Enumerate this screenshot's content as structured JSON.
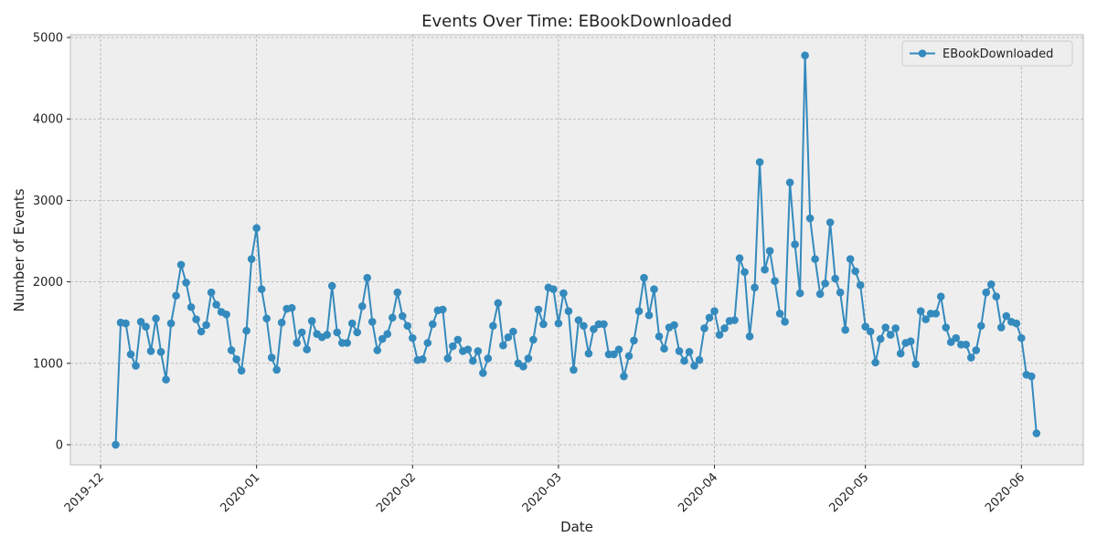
{
  "chart_data": {
    "type": "line",
    "title": "Events Over Time: EBookDownloaded",
    "x_label": "Date",
    "y_label": "Number of Events",
    "series": [
      {
        "name": "EBookDownloaded",
        "color": "#348abd",
        "values": [
          0,
          1500,
          1490,
          1110,
          970,
          1510,
          1450,
          1150,
          1550,
          1140,
          800,
          1490,
          1830,
          2210,
          1990,
          1690,
          1540,
          1390,
          1470,
          1870,
          1720,
          1630,
          1600,
          1160,
          1050,
          910,
          1400,
          2280,
          2660,
          1910,
          1550,
          1070,
          920,
          1500,
          1670,
          1680,
          1250,
          1380,
          1170,
          1520,
          1360,
          1320,
          1350,
          1950,
          1380,
          1250,
          1250,
          1490,
          1380,
          1700,
          2050,
          1510,
          1160,
          1300,
          1360,
          1560,
          1870,
          1580,
          1460,
          1310,
          1040,
          1050,
          1250,
          1480,
          1650,
          1660,
          1060,
          1210,
          1290,
          1150,
          1170,
          1030,
          1150,
          880,
          1060,
          1460,
          1740,
          1220,
          1320,
          1390,
          1000,
          960,
          1060,
          1290,
          1660,
          1480,
          1930,
          1910,
          1490,
          1860,
          1640,
          920,
          1530,
          1460,
          1120,
          1420,
          1480,
          1480,
          1110,
          1110,
          1170,
          840,
          1090,
          1280,
          1640,
          2050,
          1590,
          1910,
          1330,
          1180,
          1440,
          1470,
          1150,
          1030,
          1140,
          970,
          1040,
          1430,
          1560,
          1640,
          1350,
          1430,
          1520,
          1530,
          2290,
          2120,
          1330,
          1930,
          3470,
          2150,
          2380,
          2010,
          1610,
          1510,
          3220,
          2460,
          1860,
          4780,
          2780,
          2280,
          1850,
          1980,
          2730,
          2040,
          1870,
          1410,
          2280,
          2130,
          1960,
          1450,
          1390,
          1010,
          1300,
          1440,
          1350,
          1430,
          1120,
          1250,
          1270,
          990,
          1640,
          1540,
          1610,
          1610,
          1820,
          1440,
          1260,
          1310,
          1230,
          1230,
          1070,
          1160,
          1460,
          1870,
          1970,
          1820,
          1440,
          1580,
          1510,
          1490,
          1310,
          860,
          840,
          140
        ]
      }
    ],
    "xlim": [
      -9,
      192.3
    ],
    "xticks": [
      {
        "value": -3,
        "label": "2019-12"
      },
      {
        "value": 28,
        "label": "2020-01"
      },
      {
        "value": 59,
        "label": "2020-02"
      },
      {
        "value": 88,
        "label": "2020-03"
      },
      {
        "value": 119,
        "label": "2020-04"
      },
      {
        "value": 149,
        "label": "2020-05"
      },
      {
        "value": 180,
        "label": "2020-06"
      }
    ],
    "ylim": [
      -247,
      5034
    ],
    "yticks": [
      0,
      1000,
      2000,
      3000,
      4000,
      5000
    ],
    "grid": true,
    "legend": "upper right"
  }
}
